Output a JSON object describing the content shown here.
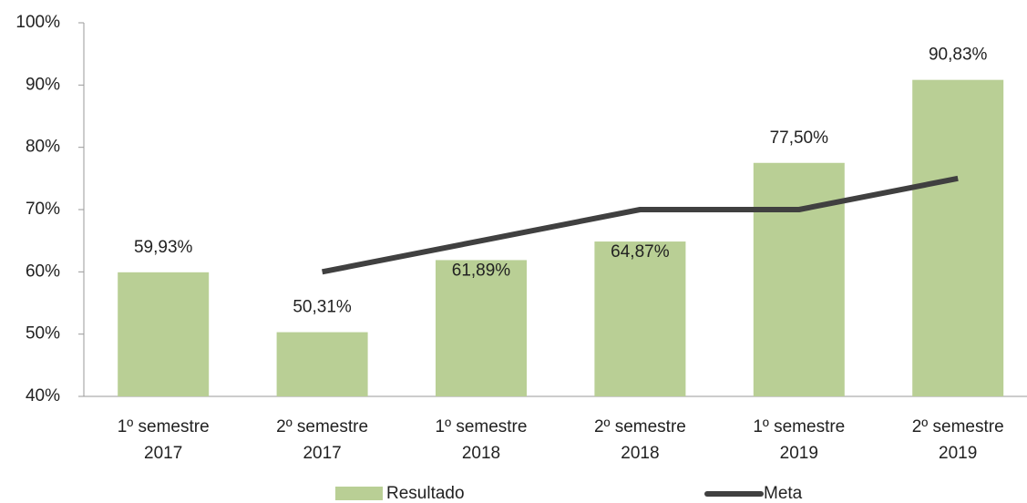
{
  "chart_data": {
    "type": "bar",
    "categories": [
      [
        "1º semestre",
        "2017"
      ],
      [
        "2º semestre",
        "2017"
      ],
      [
        "1º semestre",
        "2018"
      ],
      [
        "2º semestre",
        "2018"
      ],
      [
        "1º semestre",
        "2019"
      ],
      [
        "2º semestre",
        "2019"
      ]
    ],
    "series": [
      {
        "name": "Resultado",
        "type": "bar",
        "color": "#b9cf95",
        "values": [
          59.93,
          50.31,
          61.89,
          64.87,
          77.5,
          90.83
        ],
        "value_labels": [
          "59,93%",
          "50,31%",
          "61,89%",
          "64,87%",
          "77,50%",
          "90,83%"
        ]
      },
      {
        "name": "Meta",
        "type": "line",
        "color": "#404040",
        "values": [
          null,
          60,
          65,
          70,
          70,
          75
        ]
      }
    ],
    "ylim": [
      40,
      100
    ],
    "yticks": [
      {
        "value": 40,
        "label": "40%"
      },
      {
        "value": 50,
        "label": "50%"
      },
      {
        "value": 60,
        "label": "60%"
      },
      {
        "value": 70,
        "label": "70%"
      },
      {
        "value": 80,
        "label": "80%"
      },
      {
        "value": 90,
        "label": "90%"
      },
      {
        "value": 100,
        "label": "100%"
      }
    ],
    "grid": false,
    "legend": "bottom"
  }
}
